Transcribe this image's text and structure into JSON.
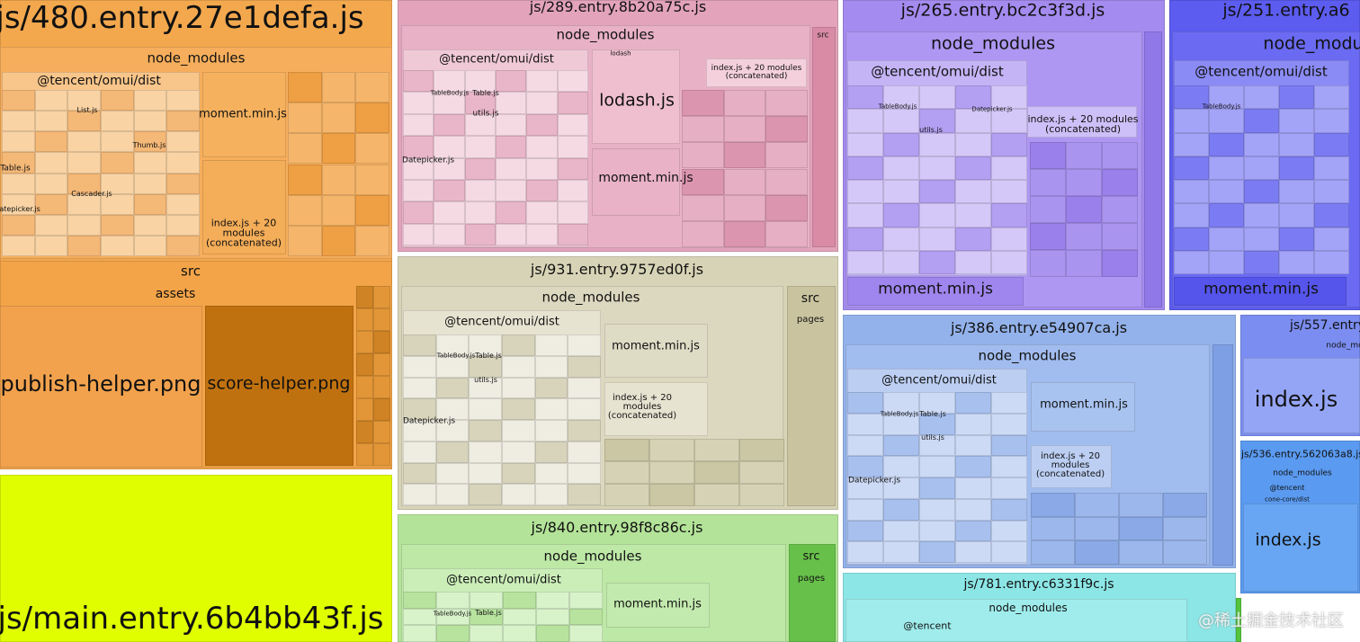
{
  "blocks": [
    {
      "title": "js/480.entry.27e1defa.js",
      "labels": [
        "node_modules",
        "@tencent/omui/dist",
        "moment.min.js",
        "index.js + 20\nmodules\n(concatenated)",
        "src",
        "assets",
        "publish-helper.png",
        "score-helper.png",
        "Table.js",
        "Datepicker.js",
        "List.js",
        "Thumb.js",
        "Cascader.js"
      ]
    },
    {
      "title": "js/main.entry.6b4bb43f.js",
      "labels": []
    },
    {
      "title": "js/289.entry.8b20a75c.js",
      "labels": [
        "node_modules",
        "@tencent/omui/dist",
        "lodash.js",
        "moment.min.js",
        "index.js + 20 modules\n(concatenated)",
        "src",
        "lodash",
        "Datepicker.js",
        "TableBody.js",
        "Table.js",
        "utils.js"
      ]
    },
    {
      "title": "js/931.entry.9757ed0f.js",
      "labels": [
        "node_modules",
        "@tencent/omui/dist",
        "moment.min.js",
        "index.js + 20\nmodules\n(concatenated)",
        "src",
        "pages",
        "Datepicker.js",
        "TableBody.js",
        "Table.js",
        "utils.js"
      ]
    },
    {
      "title": "js/840.entry.98f8c86c.js",
      "labels": [
        "node_modules",
        "@tencent/omui/dist",
        "moment.min.js",
        "src",
        "pages",
        "TableBody.js",
        "Table.js"
      ]
    },
    {
      "title": "js/265.entry.bc2c3f3d.js",
      "labels": [
        "node_modules",
        "@tencent/omui/dist",
        "index.js + 20 modules\n(concatenated)",
        "moment.min.js",
        "TableBody.js",
        "Datepicker.js",
        "utils.js"
      ]
    },
    {
      "title": "js/251.entry.a6",
      "labels": [
        "node_modu",
        "@tencent/omui/dist",
        "moment.min.js",
        "TableBody.js"
      ]
    },
    {
      "title": "js/386.entry.e54907ca.js",
      "labels": [
        "node_modules",
        "@tencent/omui/dist",
        "moment.min.js",
        "index.js + 20\nmodules\n(concatenated)",
        "Datepicker.js",
        "TableBody.js",
        "Table.js",
        "utils.js"
      ]
    },
    {
      "title": "js/557.entry",
      "labels": [
        "node_mo",
        "index.js"
      ]
    },
    {
      "title": "js/536.entry.562063a8.js",
      "labels": [
        "node_modules",
        "@tencent",
        "cone-core/dist",
        "index.js"
      ]
    },
    {
      "title": "js/781.entry.c6331f9c.js",
      "labels": [
        "node_modules",
        "@tencent"
      ]
    }
  ],
  "watermark": "@稀土掘金技术社区"
}
